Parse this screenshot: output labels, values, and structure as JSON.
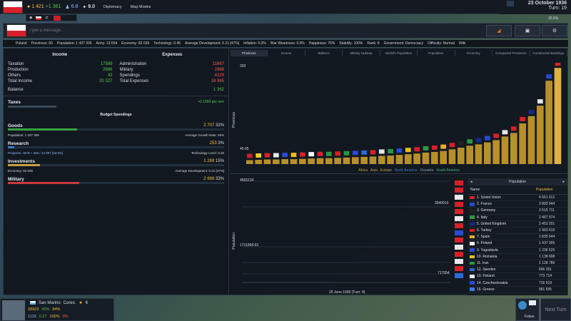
{
  "topbar": {
    "gold": "1 421",
    "gold_income": "+1 361",
    "manpower": "6.8",
    "stability_val": "9.0",
    "nav": [
      "Diplomacy",
      "Map Modes"
    ],
    "date": "23 October 1936",
    "turn": "Turn: 19",
    "percent": "32.6%"
  },
  "message": {
    "placeholder": "Type a message..."
  },
  "stats": {
    "country": "Poland",
    "provinces": "Provinces: 60",
    "population": "Population: 1 437 305",
    "army": "Army: 13 654",
    "economy": "Economy: 82 039",
    "technology": "Technology: 0.46",
    "avg_dev": "Average Development: 0.21 [47%]",
    "inflation": "Inflation: 0.0%",
    "war_weariness": "War Weariness: 0.0%",
    "happiness": "Happiness: 75%",
    "stability": "Stability: 100%",
    "rank": "Rank: 8",
    "government": "Government: Democracy",
    "difficulty": "Difficulty: Normal",
    "wiki": "Wiki"
  },
  "budget": {
    "income_title": "Income",
    "expenses_title": "Expenses",
    "income": [
      {
        "label": "Taxation",
        "value": "17599"
      },
      {
        "label": "Production",
        "value": "2686"
      },
      {
        "label": "Others",
        "value": "42"
      },
      {
        "label": "Total Income",
        "value": "20 327"
      }
    ],
    "expenses": [
      {
        "label": "Administration",
        "value": "11867"
      },
      {
        "label": "Military",
        "value": "2868"
      },
      {
        "label": "Spendings",
        "value": "4229"
      },
      {
        "label": "Total Expenses",
        "value": "18 965"
      }
    ],
    "balance_label": "Balance",
    "balance_value": "1 362",
    "taxes_label": "Taxes",
    "taxes_value": "+0.1090 per turn",
    "spendings_title": "Budget Spendings",
    "goods_label": "Goods",
    "goods_value": "2 707",
    "goods_pct": "32%",
    "goods_sub_left": "Population: 1 437 305",
    "goods_sub_right": "Average Growth Rate: 45%",
    "research_label": "Research",
    "research_value": "253",
    "research_pct": "3%",
    "research_sub_left": "Progress: 4579 + 256 / 14 087 [32.6%]",
    "research_sub_right": "Technology Level: 0.46",
    "investments_label": "Investments",
    "investments_value": "1 269",
    "investments_pct": "15%",
    "investments_sub_left": "Economy: 82 039",
    "investments_sub_right": "Average Development: 0.21 [47%]",
    "military_label": "Military",
    "military_value": "2 868",
    "military_pct": "33%"
  },
  "tabs": [
    "Provinces",
    "Income",
    "Balance",
    "Military Upkeep",
    "World's Population",
    "Population",
    "Economy",
    "Conquered Provinces",
    "Constructed Buildings"
  ],
  "chart_data": [
    {
      "type": "bar",
      "ylabel": "Provinces",
      "yticks": [
        "293",
        "45.95"
      ],
      "values": [
        12,
        13,
        14,
        14,
        15,
        15,
        16,
        17,
        18,
        18,
        19,
        20,
        21,
        22,
        23,
        25,
        26,
        28,
        30,
        32,
        35,
        37,
        40,
        45,
        50,
        56,
        60,
        66,
        73,
        84,
        95,
        124,
        146,
        178,
        254,
        293
      ],
      "ylim": [
        0,
        300
      ],
      "legend": [
        "Africa",
        "Asia",
        "Europe",
        "North America",
        "Oceania",
        "South America"
      ],
      "legend_colors": [
        "#c8a040",
        "#c8a040",
        "#c8a040",
        "#4a7ac8",
        "#8aa0c0",
        "#4ab870"
      ]
    },
    {
      "type": "line",
      "ylabel": "Population",
      "labels": [
        "4565134",
        "3540910",
        "1711568.63",
        "717054"
      ],
      "xlabel": "25 June 1936",
      "xlabel_turn": "[Turn: 4]"
    }
  ],
  "population_list": {
    "title": "Population",
    "col_name": "Name",
    "col_pop": "Population",
    "rows": [
      {
        "name": "1. Soviet Union",
        "value": "4 561 012",
        "color": "#d8202a"
      },
      {
        "name": "2. France",
        "value": "3 892 944",
        "color": "#2a4ad8"
      },
      {
        "name": "3. Germany",
        "value": "3 515 711",
        "color": "#222222"
      },
      {
        "name": "4. Italy",
        "value": "2 467 974",
        "color": "#2a9a40"
      },
      {
        "name": "5. United Kingdom",
        "value": "2 453 201",
        "color": "#1a2a8a"
      },
      {
        "name": "6. Turkey",
        "value": "1 963 610",
        "color": "#d8202a"
      },
      {
        "name": "7. Spain",
        "value": "1 835 544",
        "color": "#e8b020"
      },
      {
        "name": "8. Poland",
        "value": "1 437 305",
        "color": "#ffffff"
      },
      {
        "name": "9. Yugoslavia",
        "value": "1 236 525",
        "color": "#2a4ad8"
      },
      {
        "name": "10. Romania",
        "value": "1 138 698",
        "color": "#e8c020"
      },
      {
        "name": "11. Iran",
        "value": "1 128 786",
        "color": "#2a9a40"
      },
      {
        "name": "12. Sweden",
        "value": "846 051",
        "color": "#2a6ad8"
      },
      {
        "name": "13. Finland",
        "value": "773 714",
        "color": "#e8eef8"
      },
      {
        "name": "14. Czechoslovakia",
        "value": "716 519",
        "color": "#2a4ad8"
      },
      {
        "name": "15. Greece",
        "value": "681 695",
        "color": "#3a7ae8"
      }
    ]
  },
  "province": {
    "name": "San Marino",
    "cores_label": "Cores:",
    "stars": "6",
    "gold": "28923",
    "percent": "42%",
    "happiness": "84%",
    "manpower": "1133",
    "tech": "0.27",
    "stability": "100%",
    "war": "0%"
  },
  "fokus": "Fokus",
  "next_turn": "Next Turn"
}
